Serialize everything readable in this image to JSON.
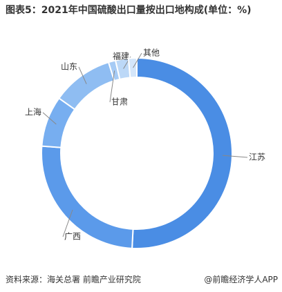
{
  "chart_data": {
    "type": "donut",
    "title": "图表5：2021年中国硫酸出口量按出口地构成(单位：%)",
    "categories": [
      "江苏",
      "广西",
      "上海",
      "山东",
      "甘肃",
      "福建",
      "其他"
    ],
    "values": [
      50.8,
      25.4,
      8.6,
      10.4,
      1.2,
      2.2,
      1.4
    ],
    "colors": [
      "#4a8de4",
      "#5b9aea",
      "#77aef0",
      "#8fbdf2",
      "#a6cbf5",
      "#bcd8f7",
      "#d4e6fa"
    ]
  },
  "footer": {
    "source": "资料来源：海关总署 前瞻产业研究院",
    "brand": "@前瞻经济学人APP"
  }
}
